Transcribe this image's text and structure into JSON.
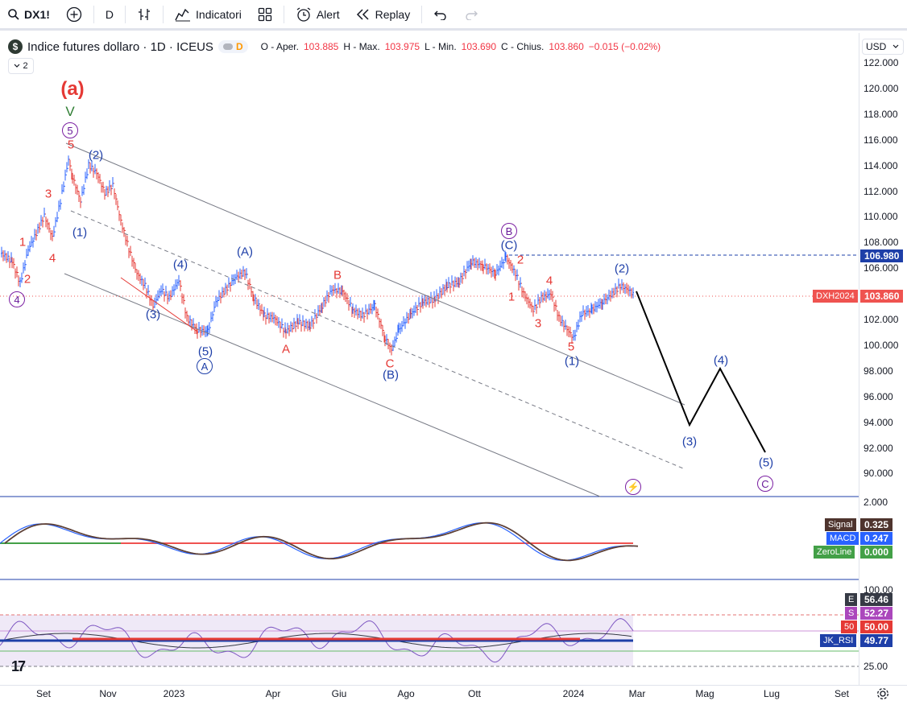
{
  "toolbar": {
    "symbol": "DX1!",
    "interval": "D",
    "indicators_label": "Indicatori",
    "alert_label": "Alert",
    "replay_label": "Replay"
  },
  "legend": {
    "logo": "$",
    "title": "Indice futures dollaro · 1D · ICEUS",
    "badge_letter": "D",
    "collapse_count": "2",
    "ohlc": {
      "o_label": "O - Aper.",
      "o": "103.885",
      "h_label": "H - Max.",
      "h": "103.975",
      "l_label": "L - Min.",
      "l": "103.690",
      "c_label": "C - Chius.",
      "c": "103.860",
      "change": "−0.015 (−0.02%)"
    }
  },
  "price_scale": {
    "currency": "USD",
    "ticks": [
      "122.000",
      "120.000",
      "118.000",
      "116.000",
      "114.000",
      "112.000",
      "110.000",
      "108.000",
      "106.000",
      "104.000",
      "102.000",
      "100.000",
      "98.000",
      "96.000",
      "94.000",
      "92.000",
      "90.000"
    ],
    "level_label": "106.980",
    "symbol_tag": "DXH2024",
    "last_price": "103.860"
  },
  "macd": {
    "top_tick": "2.000",
    "signal_label": "Signal",
    "signal_value": "0.325",
    "macd_label": "MACD",
    "macd_value": "0.247",
    "zero_label": "ZeroLine",
    "zero_value": "0.000"
  },
  "rsi": {
    "top_tick": "100.00",
    "bottom_tick": "25.00",
    "e_label": "E",
    "e_value": "56.46",
    "s_label": "S",
    "s_value": "52.27",
    "fifty_label": "50",
    "fifty_value": "50.00",
    "jk_label": "JK_RSI",
    "jk_value": "49.77"
  },
  "time_axis": [
    "Set",
    "Nov",
    "2023",
    "Apr",
    "Giu",
    "Ago",
    "Ott",
    "2024",
    "Mar",
    "Mag",
    "Lug",
    "Set"
  ],
  "waves": {
    "a_big": "(a)",
    "v_green": "V",
    "five_circ": "5",
    "four_circ": "4",
    "red_1": "1",
    "red_2": "2",
    "red_3": "3",
    "red_4": "4",
    "red_5": "5",
    "blue_p1": "(1)",
    "blue_p2": "(2)",
    "blue_p3": "(3)",
    "blue_p4": "(4)",
    "blue_p5": "(5)",
    "A_circ": "A",
    "pA": "(A)",
    "A_red": "A",
    "B_red": "B",
    "C_red": "C",
    "pB": "(B)",
    "B_circ": "B",
    "pC": "(C)",
    "r2": "2",
    "r4": "4",
    "r1": "1",
    "r3": "3",
    "r5": "5",
    "q1": "(1)",
    "q2": "(2)",
    "f3": "(3)",
    "f4": "(4)",
    "f5": "(5)",
    "C_circ": "C",
    "tv_logo": "17"
  },
  "colors": {
    "up": "#2962ff",
    "down": "#e53935",
    "macd": "#2962ff",
    "signal": "#5d4037",
    "zero": "#43a047",
    "rsi_fill": "#efe9f7"
  }
}
